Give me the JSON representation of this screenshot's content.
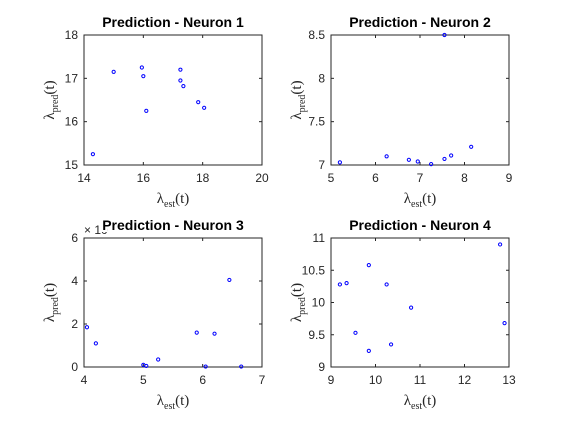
{
  "chart_data": [
    {
      "type": "scatter",
      "title": "Prediction - Neuron 1",
      "xlabel": {
        "main": "λ",
        "sub": "est",
        "tail": "(t)"
      },
      "ylabel": {
        "main": "λ",
        "sub": "pred",
        "tail": "(t)"
      },
      "xlim": [
        14,
        20
      ],
      "ylim": [
        15,
        18
      ],
      "xticks": [
        "14",
        "16",
        "18",
        "20"
      ],
      "yticks": [
        "15",
        "16",
        "17",
        "18"
      ],
      "exponent": "",
      "marker_color": "#0000ff",
      "points": [
        [
          14.3,
          15.25
        ],
        [
          15.0,
          17.15
        ],
        [
          15.95,
          17.25
        ],
        [
          16.0,
          17.05
        ],
        [
          16.1,
          16.25
        ],
        [
          17.25,
          17.2
        ],
        [
          17.25,
          16.95
        ],
        [
          17.35,
          16.82
        ],
        [
          17.85,
          16.45
        ],
        [
          18.05,
          16.32
        ]
      ]
    },
    {
      "type": "scatter",
      "title": "Prediction - Neuron 2",
      "xlabel": {
        "main": "λ",
        "sub": "est",
        "tail": "(t)"
      },
      "ylabel": {
        "main": "λ",
        "sub": "pred",
        "tail": "(t)"
      },
      "xlim": [
        5,
        9
      ],
      "ylim": [
        7,
        8.5
      ],
      "xticks": [
        "5",
        "6",
        "7",
        "8",
        "9"
      ],
      "yticks": [
        "7",
        "7.5",
        "8",
        "8.5"
      ],
      "exponent": "",
      "marker_color": "#0000ff",
      "points": [
        [
          5.2,
          7.03
        ],
        [
          6.25,
          7.1
        ],
        [
          6.75,
          7.06
        ],
        [
          6.95,
          7.04
        ],
        [
          7.25,
          7.01
        ],
        [
          7.55,
          7.07
        ],
        [
          7.55,
          8.5
        ],
        [
          7.7,
          7.11
        ],
        [
          8.15,
          7.21
        ]
      ]
    },
    {
      "type": "scatter",
      "title": "Prediction - Neuron 3",
      "xlabel": {
        "main": "λ",
        "sub": "est",
        "tail": "(t)"
      },
      "ylabel": {
        "main": "λ",
        "sub": "pred",
        "tail": "(t)"
      },
      "xlim": [
        4,
        7
      ],
      "ylim": [
        0,
        6
      ],
      "xticks": [
        "4",
        "5",
        "6",
        "7"
      ],
      "yticks": [
        "0",
        "2",
        "4",
        "6"
      ],
      "exponent": "× 10",
      "marker_color": "#0000ff",
      "points": [
        [
          4.05,
          1.85
        ],
        [
          4.2,
          1.1
        ],
        [
          5.0,
          0.1
        ],
        [
          5.05,
          0.05
        ],
        [
          5.25,
          0.35
        ],
        [
          5.9,
          1.6
        ],
        [
          6.05,
          0.02
        ],
        [
          6.2,
          1.55
        ],
        [
          6.45,
          4.05
        ],
        [
          6.65,
          0.02
        ]
      ]
    },
    {
      "type": "scatter",
      "title": "Prediction - Neuron 4",
      "xlabel": {
        "main": "λ",
        "sub": "est",
        "tail": "(t)"
      },
      "ylabel": {
        "main": "λ",
        "sub": "pred",
        "tail": "(t)"
      },
      "xlim": [
        9,
        13
      ],
      "ylim": [
        9,
        11
      ],
      "xticks": [
        "9",
        "10",
        "11",
        "12",
        "13"
      ],
      "yticks": [
        "9",
        "9.5",
        "10",
        "10.5",
        "11"
      ],
      "exponent": "",
      "marker_color": "#0000ff",
      "points": [
        [
          9.2,
          10.28
        ],
        [
          9.35,
          10.3
        ],
        [
          9.55,
          9.53
        ],
        [
          9.85,
          10.58
        ],
        [
          9.85,
          9.25
        ],
        [
          10.25,
          10.28
        ],
        [
          10.35,
          9.35
        ],
        [
          10.8,
          9.92
        ],
        [
          12.8,
          10.9
        ],
        [
          12.9,
          9.68
        ]
      ]
    }
  ]
}
